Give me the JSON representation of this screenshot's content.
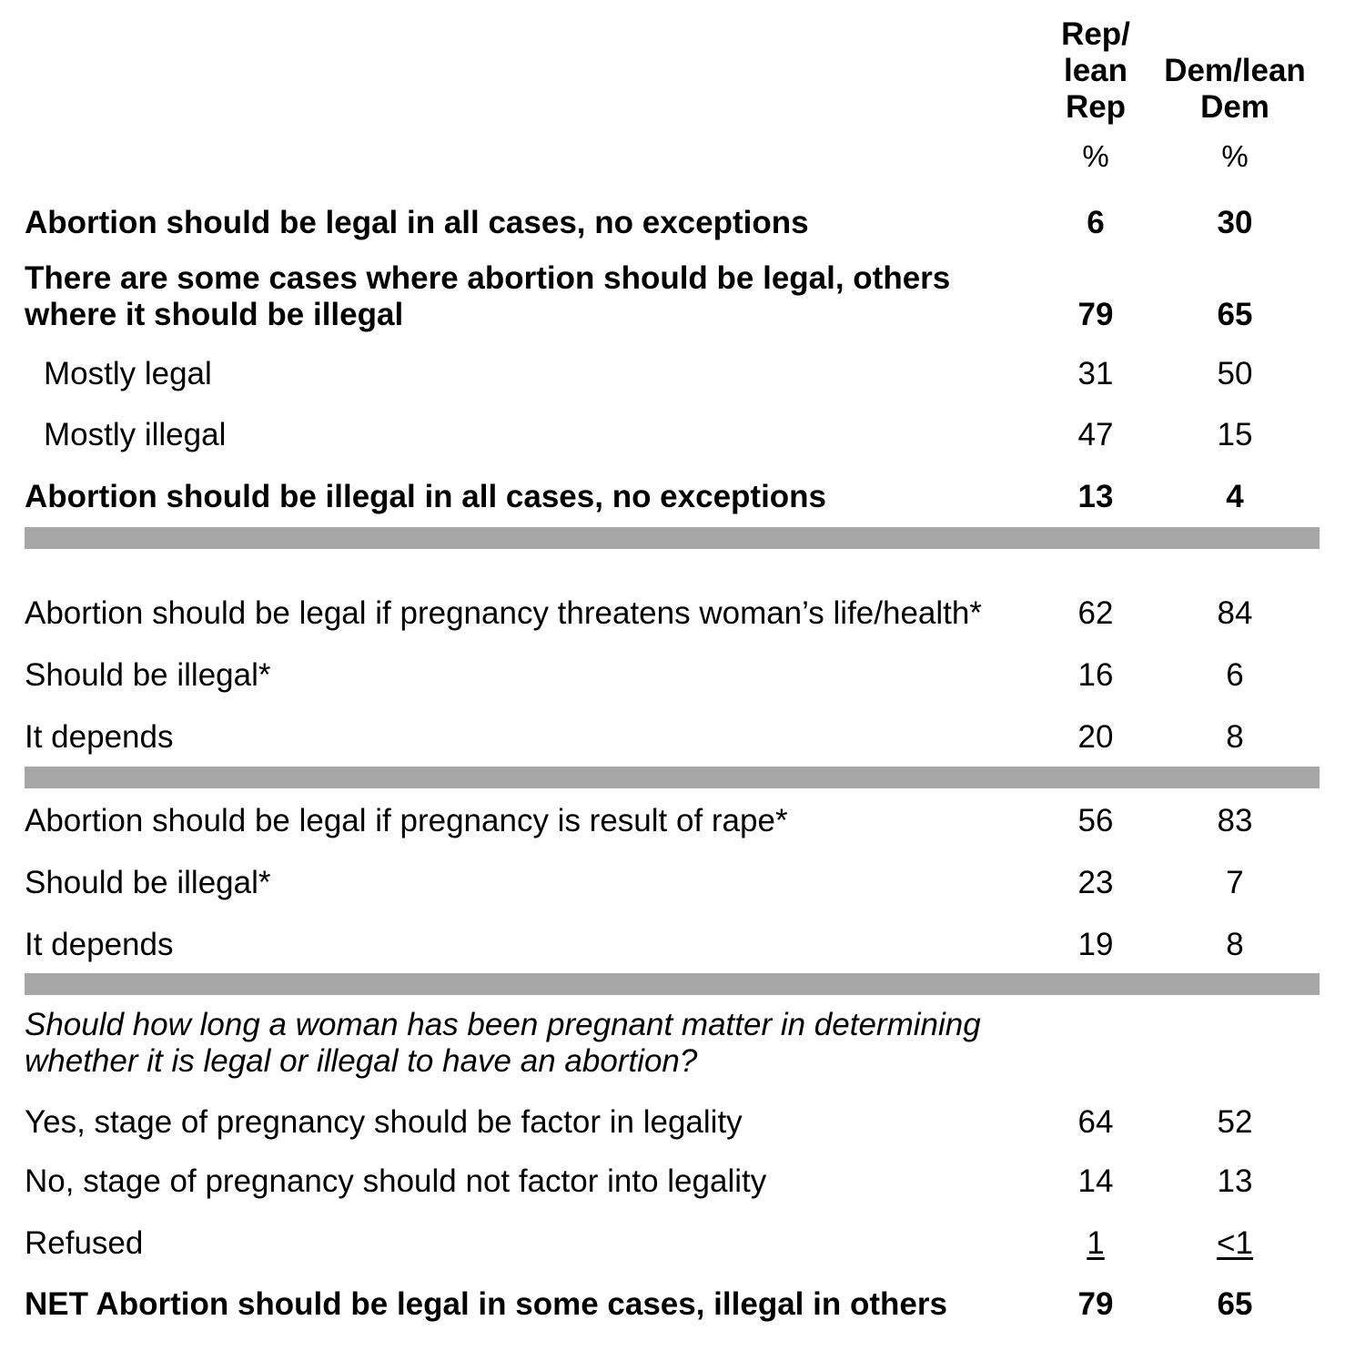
{
  "chart_data": {
    "type": "table",
    "columns": [
      {
        "key": "rep",
        "label": "Rep/\nlean\nRep",
        "unit": "%"
      },
      {
        "key": "dem",
        "label": "Dem/lean\nDem",
        "unit": "%"
      }
    ],
    "rows": [
      {
        "label": "Abortion should be legal in all cases, no exceptions",
        "rep": "6",
        "dem": "30",
        "style": "bold"
      },
      {
        "label": "There are some cases where abortion should be legal, others where it should be illegal",
        "rep": "79",
        "dem": "65",
        "style": "bold"
      },
      {
        "label": "Mostly legal",
        "rep": "31",
        "dem": "50",
        "style": "indent"
      },
      {
        "label": "Mostly illegal",
        "rep": "47",
        "dem": "15",
        "style": "indent"
      },
      {
        "label": "Abortion should be illegal in all cases, no exceptions",
        "rep": "13",
        "dem": "4",
        "style": "bold"
      },
      {
        "label": "Abortion should be legal if pregnancy threatens woman’s life/health*",
        "rep": "62",
        "dem": "84",
        "style": "normal"
      },
      {
        "label": "Should be illegal*",
        "rep": "16",
        "dem": "6",
        "style": "normal"
      },
      {
        "label": "It depends",
        "rep": "20",
        "dem": "8",
        "style": "normal"
      },
      {
        "label": "Abortion should be legal if pregnancy is result of rape*",
        "rep": "56",
        "dem": "83",
        "style": "normal"
      },
      {
        "label": "Should be illegal*",
        "rep": "23",
        "dem": "7",
        "style": "normal"
      },
      {
        "label": "It depends",
        "rep": "19",
        "dem": "8",
        "style": "normal"
      },
      {
        "label": "Should how long a woman has been pregnant matter in determining whether it is legal or illegal to have an abortion?",
        "rep": "",
        "dem": "",
        "style": "italic"
      },
      {
        "label": "Yes, stage of pregnancy should be factor in legality",
        "rep": "64",
        "dem": "52",
        "style": "normal"
      },
      {
        "label": "No, stage of pregnancy should not factor into legality",
        "rep": "14",
        "dem": "13",
        "style": "normal"
      },
      {
        "label": "Refused",
        "rep": "1",
        "dem": "<1",
        "style": "underline"
      },
      {
        "label": "NET Abortion should be legal in some cases, illegal in others",
        "rep": "79",
        "dem": "65",
        "style": "bold"
      }
    ]
  }
}
